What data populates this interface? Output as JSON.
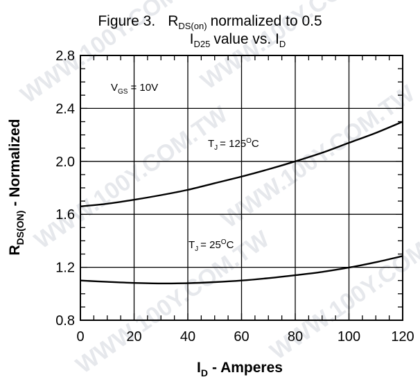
{
  "chart_data": {
    "type": "line",
    "title_line1": {
      "prefix": "Figure 3.",
      "r": "R",
      "r_sub": "DS(on)",
      "rest": "normalized to 0.5"
    },
    "title_line2": {
      "i": "I",
      "i_sub": "D25",
      "mid": "value vs. I",
      "end_sub": "D"
    },
    "xlabel": {
      "main": "I",
      "sub": "D",
      "rest": "- Amperes"
    },
    "ylabel": {
      "main": "R",
      "sub": "DS(ON)",
      "rest": "- Normalized"
    },
    "xlim": [
      0,
      120
    ],
    "ylim": [
      0.8,
      2.8
    ],
    "xticks": [
      "0",
      "20",
      "40",
      "60",
      "80",
      "100",
      "120"
    ],
    "yticks": [
      "0.8",
      "1.2",
      "1.6",
      "2.0",
      "2.4",
      "2.8"
    ],
    "grid": true,
    "condition": {
      "v": "V",
      "v_sub": "GS",
      "rest": "= 10V"
    },
    "series": [
      {
        "name": {
          "t": "T",
          "t_sub": "J",
          "eq": "= 125",
          "sup": "O",
          "unit": "C"
        },
        "x": [
          0,
          10,
          20,
          30,
          40,
          50,
          60,
          70,
          80,
          90,
          100,
          110,
          120
        ],
        "y": [
          1.66,
          1.68,
          1.71,
          1.745,
          1.785,
          1.835,
          1.885,
          1.94,
          2.0,
          2.065,
          2.14,
          2.215,
          2.3
        ]
      },
      {
        "name": {
          "t": "T",
          "t_sub": "J",
          "eq": "= 25",
          "sup": "O",
          "unit": "C"
        },
        "x": [
          0,
          10,
          20,
          30,
          40,
          50,
          60,
          70,
          80,
          90,
          100,
          110,
          120
        ],
        "y": [
          1.1,
          1.09,
          1.082,
          1.078,
          1.08,
          1.088,
          1.1,
          1.118,
          1.14,
          1.165,
          1.198,
          1.238,
          1.285
        ]
      }
    ],
    "watermark": [
      "WWW.100Y.COM.TW",
      "WWW.100Y.COM.TW",
      "WWW.100Y.COM.TW",
      "WWW.100Y.COM.TW",
      "WWW.100Y.COM.TW",
      "WWW.100Y.COM.TW"
    ]
  }
}
